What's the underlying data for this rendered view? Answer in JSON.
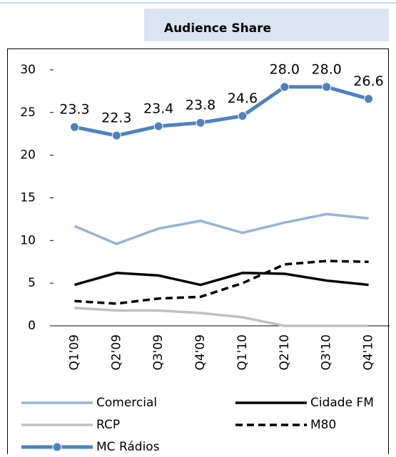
{
  "chart_data": {
    "type": "line",
    "title": "Audience Share",
    "categories": [
      "Q1'09",
      "Q2'09",
      "Q3'09",
      "Q4'09",
      "Q1'10",
      "Q2'10",
      "Q3'10",
      "Q4'10"
    ],
    "series": [
      {
        "name": "Comercial",
        "color": "#95b3d7",
        "values": [
          11.7,
          9.6,
          11.4,
          12.3,
          10.9,
          12.1,
          13.1,
          12.6
        ]
      },
      {
        "name": "Cidade FM",
        "color": "#000000",
        "values": [
          4.8,
          6.2,
          5.9,
          4.8,
          6.2,
          6.1,
          5.3,
          4.8
        ]
      },
      {
        "name": "RCP",
        "color": "#bfbfbf",
        "values": [
          2.1,
          1.8,
          1.8,
          1.5,
          1.0,
          0,
          0,
          0
        ]
      },
      {
        "name": "M80",
        "color": "#000000",
        "dash": true,
        "values": [
          2.9,
          2.6,
          3.2,
          3.4,
          5.0,
          7.2,
          7.6,
          7.5
        ]
      },
      {
        "name": "MC Rádios",
        "color": "#4f81bd",
        "marker": "circle",
        "values": [
          23.3,
          22.3,
          23.4,
          23.8,
          24.6,
          28.0,
          28.0,
          26.6
        ],
        "value_labels": [
          "23.3",
          "22.3",
          "23.4",
          "23.8",
          "24.6",
          "28.0",
          "28.0",
          "26.6"
        ]
      }
    ],
    "ylim": [
      0,
      30
    ],
    "yticks": [
      0,
      5,
      10,
      15,
      20,
      25,
      30
    ]
  }
}
